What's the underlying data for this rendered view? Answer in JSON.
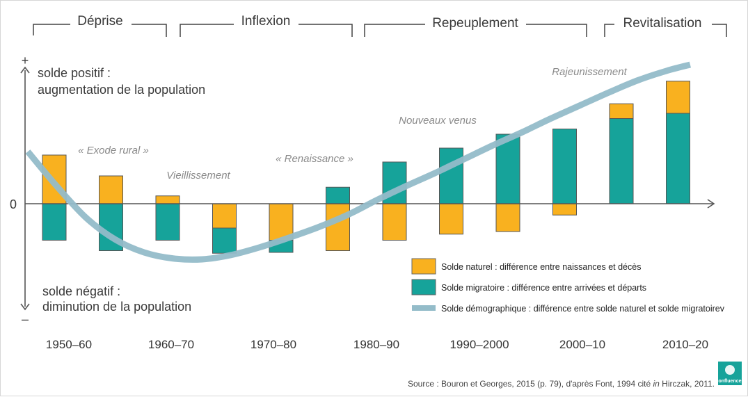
{
  "chart_data": {
    "type": "bar",
    "categories": [
      "1950–60",
      "1960–70",
      "1970–80",
      "1980–90",
      "1990–2000",
      "2000–10",
      "2010–20"
    ],
    "bar_periods": [
      {
        "natural": 2.8,
        "migratoire": -2.1
      },
      {
        "natural": 1.6,
        "migratoire": -2.7
      },
      {
        "natural": 0.45,
        "migratoire": -2.1
      },
      {
        "natural": -1.4,
        "migratoire": -1.45
      },
      {
        "natural": -2.1,
        "migratoire": -0.7
      },
      {
        "natural": -2.7,
        "migratoire": 0.95
      },
      {
        "natural": -2.1,
        "migratoire": 2.4
      },
      {
        "natural": -1.75,
        "migratoire": 3.2
      },
      {
        "natural": -1.6,
        "migratoire": 4.0
      },
      {
        "natural": -0.65,
        "migratoire": 4.3
      },
      {
        "natural": 0.85,
        "migratoire": 4.9
      },
      {
        "natural": 1.85,
        "migratoire": 5.2
      }
    ],
    "demographic_curve": [
      {
        "x": 0,
        "y": 3.0
      },
      {
        "x": 0.5,
        "y": 1.0
      },
      {
        "x": 1.0,
        "y": -0.8
      },
      {
        "x": 1.5,
        "y": -2.05
      },
      {
        "x": 2.0,
        "y": -2.8
      },
      {
        "x": 2.5,
        "y": -3.15
      },
      {
        "x": 3.0,
        "y": -3.2
      },
      {
        "x": 3.5,
        "y": -2.95
      },
      {
        "x": 4.0,
        "y": -2.5
      },
      {
        "x": 4.5,
        "y": -1.95
      },
      {
        "x": 5.0,
        "y": -1.35
      },
      {
        "x": 5.5,
        "y": -0.65
      },
      {
        "x": 6.0,
        "y": 0.2
      },
      {
        "x": 6.5,
        "y": 1.0
      },
      {
        "x": 7.0,
        "y": 1.75
      },
      {
        "x": 7.5,
        "y": 2.55
      },
      {
        "x": 8.0,
        "y": 3.35
      },
      {
        "x": 8.5,
        "y": 4.1
      },
      {
        "x": 9.0,
        "y": 4.9
      },
      {
        "x": 9.5,
        "y": 5.65
      },
      {
        "x": 10.0,
        "y": 6.4
      },
      {
        "x": 10.5,
        "y": 7.1
      },
      {
        "x": 11.0,
        "y": 7.65
      },
      {
        "x": 11.4,
        "y": 8.0
      }
    ],
    "phases": [
      "Déprise",
      "Inflexion",
      "Repeuplement",
      "Revitalisation"
    ],
    "annotations": [
      "« Exode rural »",
      "Vieillissement",
      "« Renaissance »",
      "Nouveaux venus",
      "Rajeunissement"
    ],
    "y_axis": {
      "top_sign": "+",
      "bottom_sign": "–",
      "zero_label": "0",
      "positive_line1": "solde positif :",
      "positive_line2": "augmentation de la population",
      "negative_line1": "solde négatif :",
      "negative_line2": "diminution de la population"
    },
    "legend": [
      {
        "label": "Solde naturel : différence entre naissances et décès",
        "color": "#f9b11f"
      },
      {
        "label": "Solde migratoire : différence entre arrivées et départs",
        "color": "#16a39a"
      },
      {
        "label": "Solde démographique : différence entre solde naturel et solde migratoirev",
        "color": "#94bcc9"
      }
    ],
    "colors": {
      "natural": "#f9b11f",
      "migratoire": "#16a39a",
      "curve": "#94bcc9",
      "axis": "#555555"
    }
  },
  "source": {
    "prefix": "Source : Bouron et Georges, 2015 (p. 79), d'après Font, 1994 cité ",
    "italic": "in",
    "suffix": " Hirczak, 2011."
  },
  "logo": {
    "text": "confluences"
  }
}
